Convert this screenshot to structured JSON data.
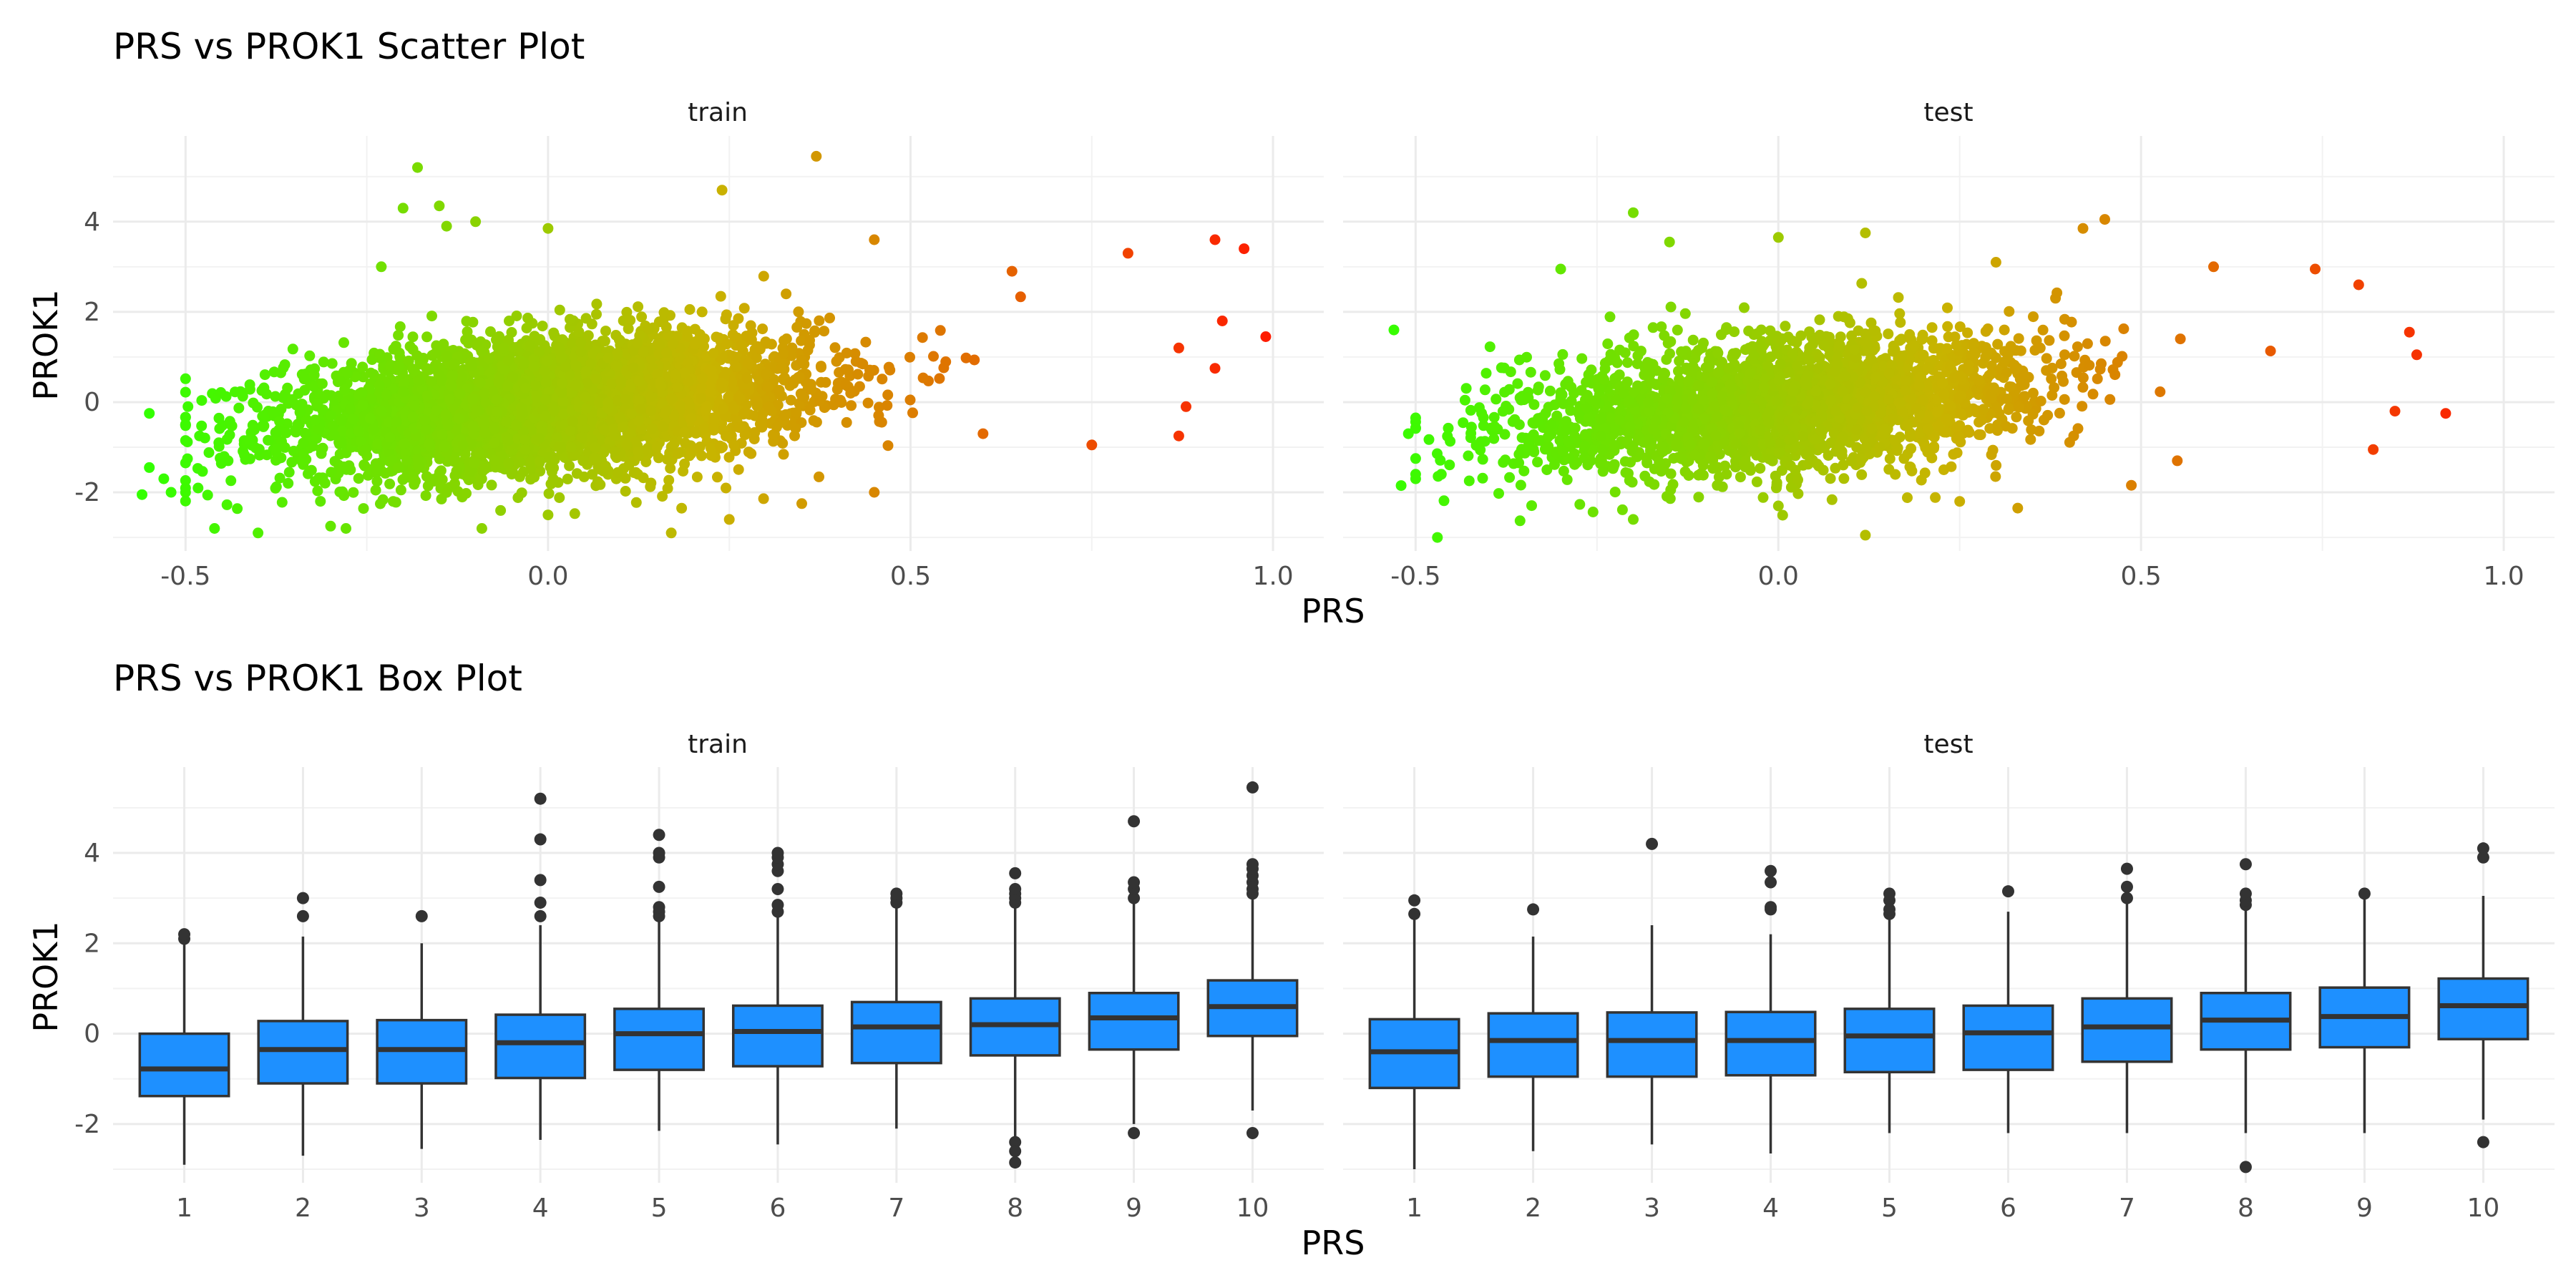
{
  "chart_data": [
    {
      "type": "scatter",
      "title": "PRS vs PROK1 Scatter Plot",
      "xlabel": "PRS",
      "ylabel": "PROK1",
      "facets": [
        "train",
        "test"
      ],
      "xlim": [
        -0.6,
        1.07
      ],
      "ylim": [
        -3.3,
        5.9
      ],
      "x_ticks": [
        -0.5,
        0.0,
        0.5,
        1.0
      ],
      "x_tick_labels": [
        "-0.5",
        "0.0",
        "0.5",
        "1.0"
      ],
      "y_ticks": [
        -2,
        0,
        2,
        4
      ],
      "y_tick_labels": [
        "-2",
        "0",
        "2",
        "4"
      ],
      "color_scale": {
        "low": "#33ff00",
        "mid": "#c8b400",
        "high": "#ff1a00"
      },
      "grid": true,
      "legend": "none",
      "trend": {
        "intercept": -0.05,
        "slope": 1.25,
        "spread_sd": 0.72
      },
      "x_distribution": {
        "mean": 0.0,
        "sd": 0.18
      },
      "points": {
        "train": [
          [
            -0.55,
            -0.25
          ],
          [
            -0.56,
            -2.05
          ],
          [
            -0.55,
            -1.45
          ],
          [
            -0.53,
            -1.7
          ],
          [
            -0.52,
            -2.0
          ],
          [
            -0.18,
            5.2
          ],
          [
            -0.2,
            4.3
          ],
          [
            -0.15,
            4.35
          ],
          [
            -0.1,
            4.0
          ],
          [
            -0.14,
            3.9
          ],
          [
            0.24,
            4.7
          ],
          [
            0.37,
            5.45
          ],
          [
            0.0,
            3.85
          ],
          [
            -0.23,
            3.0
          ],
          [
            0.45,
            3.6
          ],
          [
            0.92,
            3.6
          ],
          [
            0.96,
            3.4
          ],
          [
            0.99,
            1.45
          ],
          [
            0.93,
            1.8
          ],
          [
            0.92,
            0.75
          ],
          [
            0.87,
            1.2
          ],
          [
            0.88,
            -0.1
          ],
          [
            0.8,
            3.3
          ],
          [
            0.64,
            2.9
          ],
          [
            0.6,
            -0.7
          ],
          [
            0.17,
            -2.9
          ],
          [
            0.35,
            -2.25
          ],
          [
            -0.4,
            -2.9
          ],
          [
            -0.46,
            -2.8
          ],
          [
            0.87,
            -0.75
          ],
          [
            0.75,
            -0.95
          ],
          [
            -0.3,
            -2.75
          ],
          [
            0.0,
            -2.5
          ],
          [
            0.25,
            -2.6
          ],
          [
            0.45,
            -2.0
          ]
        ],
        "test": [
          [
            -0.53,
            1.6
          ],
          [
            -0.52,
            -1.85
          ],
          [
            -0.5,
            -1.6
          ],
          [
            -0.51,
            -0.7
          ],
          [
            -0.5,
            -0.35
          ],
          [
            -0.2,
            4.2
          ],
          [
            -0.15,
            3.55
          ],
          [
            0.0,
            3.65
          ],
          [
            0.12,
            3.75
          ],
          [
            0.42,
            3.85
          ],
          [
            0.45,
            4.05
          ],
          [
            -0.3,
            2.95
          ],
          [
            0.3,
            3.1
          ],
          [
            0.92,
            -0.25
          ],
          [
            0.88,
            1.05
          ],
          [
            0.87,
            1.55
          ],
          [
            0.8,
            2.6
          ],
          [
            0.74,
            2.95
          ],
          [
            0.6,
            3.0
          ],
          [
            0.85,
            -0.2
          ],
          [
            0.82,
            -1.05
          ],
          [
            -0.47,
            -3.0
          ],
          [
            0.12,
            -2.95
          ],
          [
            0.33,
            -2.35
          ],
          [
            0.25,
            -2.2
          ],
          [
            -0.2,
            -2.6
          ],
          [
            0.55,
            -1.3
          ],
          [
            0.0,
            -2.3
          ]
        ]
      }
    },
    {
      "type": "box",
      "title": "PRS vs PROK1 Box Plot",
      "xlabel": "PRS",
      "ylabel": "PROK1",
      "facets": [
        "train",
        "test"
      ],
      "categories": [
        "1",
        "2",
        "3",
        "4",
        "5",
        "6",
        "7",
        "8",
        "9",
        "10"
      ],
      "ylim": [
        -3.3,
        5.9
      ],
      "y_ticks": [
        -2,
        0,
        2,
        4
      ],
      "y_tick_labels": [
        "-2",
        "0",
        "2",
        "4"
      ],
      "fill": "#1e90ff",
      "grid": true,
      "series": [
        {
          "facet": "train",
          "boxes": [
            {
              "q1": -1.38,
              "median": -0.78,
              "q3": 0.0,
              "lower": -2.9,
              "upper": 2.0,
              "outliers": [
                2.1,
                2.2
              ]
            },
            {
              "q1": -1.1,
              "median": -0.35,
              "q3": 0.28,
              "lower": -2.7,
              "upper": 2.15,
              "outliers": [
                2.6,
                3.0
              ]
            },
            {
              "q1": -1.1,
              "median": -0.35,
              "q3": 0.3,
              "lower": -2.55,
              "upper": 2.0,
              "outliers": [
                2.6
              ]
            },
            {
              "q1": -0.98,
              "median": -0.2,
              "q3": 0.42,
              "lower": -2.35,
              "upper": 2.4,
              "outliers": [
                2.6,
                2.9,
                3.4,
                4.3,
                5.2
              ]
            },
            {
              "q1": -0.8,
              "median": 0.0,
              "q3": 0.55,
              "lower": -2.15,
              "upper": 2.5,
              "outliers": [
                2.6,
                2.7,
                2.8,
                3.25,
                3.9,
                4.0,
                4.4
              ]
            },
            {
              "q1": -0.72,
              "median": 0.05,
              "q3": 0.62,
              "lower": -2.45,
              "upper": 2.6,
              "outliers": [
                2.7,
                2.85,
                3.2,
                3.6,
                3.75,
                3.9,
                4.0
              ]
            },
            {
              "q1": -0.65,
              "median": 0.15,
              "q3": 0.7,
              "lower": -2.1,
              "upper": 2.8,
              "outliers": [
                2.9,
                3.0,
                3.1
              ]
            },
            {
              "q1": -0.48,
              "median": 0.2,
              "q3": 0.78,
              "lower": -2.3,
              "upper": 2.85,
              "outliers": [
                2.9,
                3.0,
                3.1,
                3.2,
                3.55,
                -2.4,
                -2.6,
                -2.85
              ]
            },
            {
              "q1": -0.35,
              "median": 0.35,
              "q3": 0.9,
              "lower": -2.0,
              "upper": 2.9,
              "outliers": [
                3.0,
                3.2,
                3.35,
                4.7,
                -2.2
              ]
            },
            {
              "q1": -0.05,
              "median": 0.6,
              "q3": 1.18,
              "lower": -1.7,
              "upper": 3.0,
              "outliers": [
                3.1,
                3.2,
                3.35,
                3.5,
                3.65,
                3.75,
                5.45,
                -2.2
              ]
            }
          ]
        },
        {
          "facet": "test",
          "boxes": [
            {
              "q1": -1.2,
              "median": -0.4,
              "q3": 0.32,
              "lower": -3.0,
              "upper": 2.55,
              "outliers": [
                2.65,
                2.95
              ]
            },
            {
              "q1": -0.95,
              "median": -0.15,
              "q3": 0.45,
              "lower": -2.6,
              "upper": 2.15,
              "outliers": [
                2.75
              ]
            },
            {
              "q1": -0.95,
              "median": -0.15,
              "q3": 0.47,
              "lower": -2.45,
              "upper": 2.4,
              "outliers": [
                4.2
              ]
            },
            {
              "q1": -0.92,
              "median": -0.15,
              "q3": 0.48,
              "lower": -2.65,
              "upper": 2.2,
              "outliers": [
                2.75,
                2.8,
                3.35,
                3.6
              ]
            },
            {
              "q1": -0.85,
              "median": -0.05,
              "q3": 0.55,
              "lower": -2.2,
              "upper": 2.55,
              "outliers": [
                2.65,
                2.75,
                2.95,
                3.1
              ]
            },
            {
              "q1": -0.8,
              "median": 0.02,
              "q3": 0.62,
              "lower": -2.2,
              "upper": 2.7,
              "outliers": [
                3.15
              ]
            },
            {
              "q1": -0.62,
              "median": 0.15,
              "q3": 0.78,
              "lower": -2.2,
              "upper": 2.9,
              "outliers": [
                3.0,
                3.25,
                3.65
              ]
            },
            {
              "q1": -0.35,
              "median": 0.3,
              "q3": 0.9,
              "lower": -2.2,
              "upper": 2.75,
              "outliers": [
                2.85,
                2.95,
                3.1,
                3.75,
                -2.95
              ]
            },
            {
              "q1": -0.3,
              "median": 0.38,
              "q3": 1.02,
              "lower": -2.2,
              "upper": 3.0,
              "outliers": [
                3.1
              ]
            },
            {
              "q1": -0.12,
              "median": 0.62,
              "q3": 1.22,
              "lower": -1.9,
              "upper": 3.05,
              "outliers": [
                3.9,
                4.1,
                -2.4
              ]
            }
          ]
        }
      ]
    }
  ]
}
